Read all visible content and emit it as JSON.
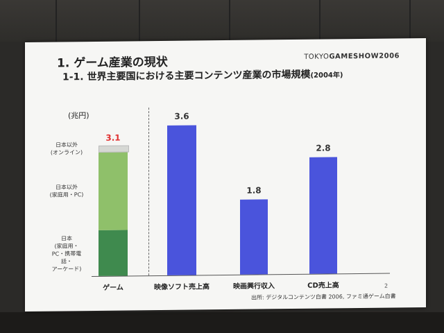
{
  "slide": {
    "title": "1. ゲーム産業の現状",
    "subtitle": "1-1. 世界主要国における主要コンテンツ産業の市場規模",
    "subtitle_year": "(2004年)",
    "logo_light": "TOKYO",
    "logo_bold": "GAMESHOW2006",
    "unit": "(兆円)",
    "page_number": "2",
    "source": "出所: デジタルコンテンツ白書 2006, ファミ通ゲーム白書"
  },
  "colors": {
    "bar_blue": "#4a54dc",
    "seg_japan": "#3f8a4e",
    "seg_home": "#8fc06a",
    "seg_online": "#d6d8d4",
    "highlight_value": "#e03030"
  },
  "chart_data": {
    "type": "bar",
    "categories": [
      "ゲーム",
      "映像ソフト売上高",
      "映画興行収入",
      "CD売上高"
    ],
    "values": [
      3.1,
      3.6,
      1.8,
      2.8
    ],
    "value_labels": [
      "3.1",
      "3.6",
      "1.8",
      "2.8"
    ],
    "stacked_first": [
      {
        "name": "日本\n(家庭用・\nPC・携帯電\n話・\nアーケード)",
        "value": 1.1
      },
      {
        "name": "日本以外\n(家庭用・PC)",
        "value": 1.9
      },
      {
        "name": "日本以外\n(オンライン)",
        "value": 0.1
      }
    ],
    "ylabel": "(兆円)",
    "ylim": [
      0,
      4.0
    ]
  }
}
